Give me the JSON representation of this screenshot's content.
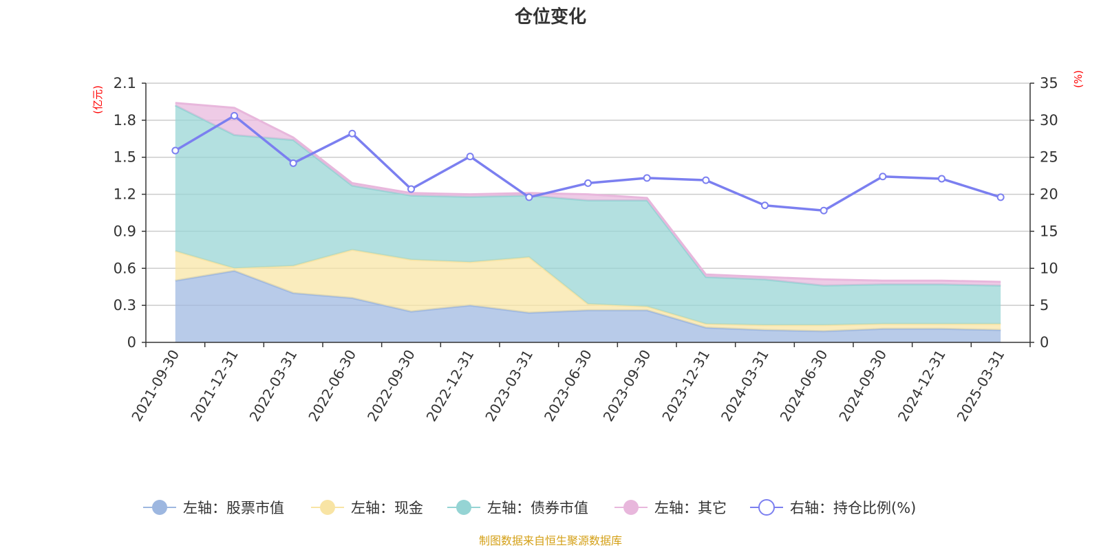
{
  "chart_data": {
    "type": "area",
    "title": "仓位变化",
    "left_unit": "(亿元)",
    "right_unit": "(%)",
    "source_note": "制图数据来自恒生聚源数据库",
    "categories": [
      "2021-09-30",
      "2021-12-31",
      "2022-03-31",
      "2022-06-30",
      "2022-09-30",
      "2022-12-31",
      "2023-03-31",
      "2023-06-30",
      "2023-09-30",
      "2023-12-31",
      "2024-03-31",
      "2024-06-30",
      "2024-09-30",
      "2024-12-31",
      "2025-03-31"
    ],
    "left_axis": {
      "min": 0,
      "max": 2.1,
      "ticks": [
        "0",
        "0.3",
        "0.6",
        "0.9",
        "1.2",
        "1.5",
        "1.8",
        "2.1"
      ]
    },
    "right_axis": {
      "min": 0,
      "max": 35,
      "ticks": [
        "0",
        "5",
        "10",
        "15",
        "20",
        "25",
        "30",
        "35"
      ]
    },
    "series": [
      {
        "name": "左轴：股票市值",
        "axis": "left",
        "stacked": true,
        "color": "#9db7e0",
        "values": [
          0.5,
          0.58,
          0.4,
          0.36,
          0.25,
          0.3,
          0.24,
          0.26,
          0.26,
          0.12,
          0.1,
          0.09,
          0.11,
          0.11,
          0.1
        ]
      },
      {
        "name": "左轴：现金",
        "axis": "left",
        "stacked": true,
        "color": "#f8e4a4",
        "values": [
          0.24,
          0.02,
          0.22,
          0.39,
          0.42,
          0.35,
          0.45,
          0.05,
          0.03,
          0.03,
          0.04,
          0.05,
          0.04,
          0.04,
          0.05
        ]
      },
      {
        "name": "左轴：债券市值",
        "axis": "left",
        "stacked": true,
        "color": "#95d4d4",
        "values": [
          1.18,
          1.08,
          1.02,
          0.52,
          0.52,
          0.53,
          0.5,
          0.84,
          0.86,
          0.38,
          0.37,
          0.32,
          0.32,
          0.32,
          0.31
        ]
      },
      {
        "name": "左轴：其它",
        "axis": "left",
        "stacked": true,
        "color": "#e8b7dc",
        "values": [
          0.02,
          0.22,
          0.02,
          0.02,
          0.02,
          0.02,
          0.02,
          0.05,
          0.02,
          0.02,
          0.02,
          0.05,
          0.03,
          0.03,
          0.03
        ]
      },
      {
        "name": "右轴：持仓比例(%)",
        "axis": "right",
        "type": "line",
        "color": "#7b7ff0",
        "values": [
          25.9,
          30.6,
          24.2,
          28.2,
          20.7,
          25.1,
          19.6,
          21.5,
          22.2,
          21.9,
          18.5,
          17.8,
          22.4,
          22.1,
          19.6
        ]
      }
    ],
    "grid": true,
    "legend_position": "bottom"
  }
}
